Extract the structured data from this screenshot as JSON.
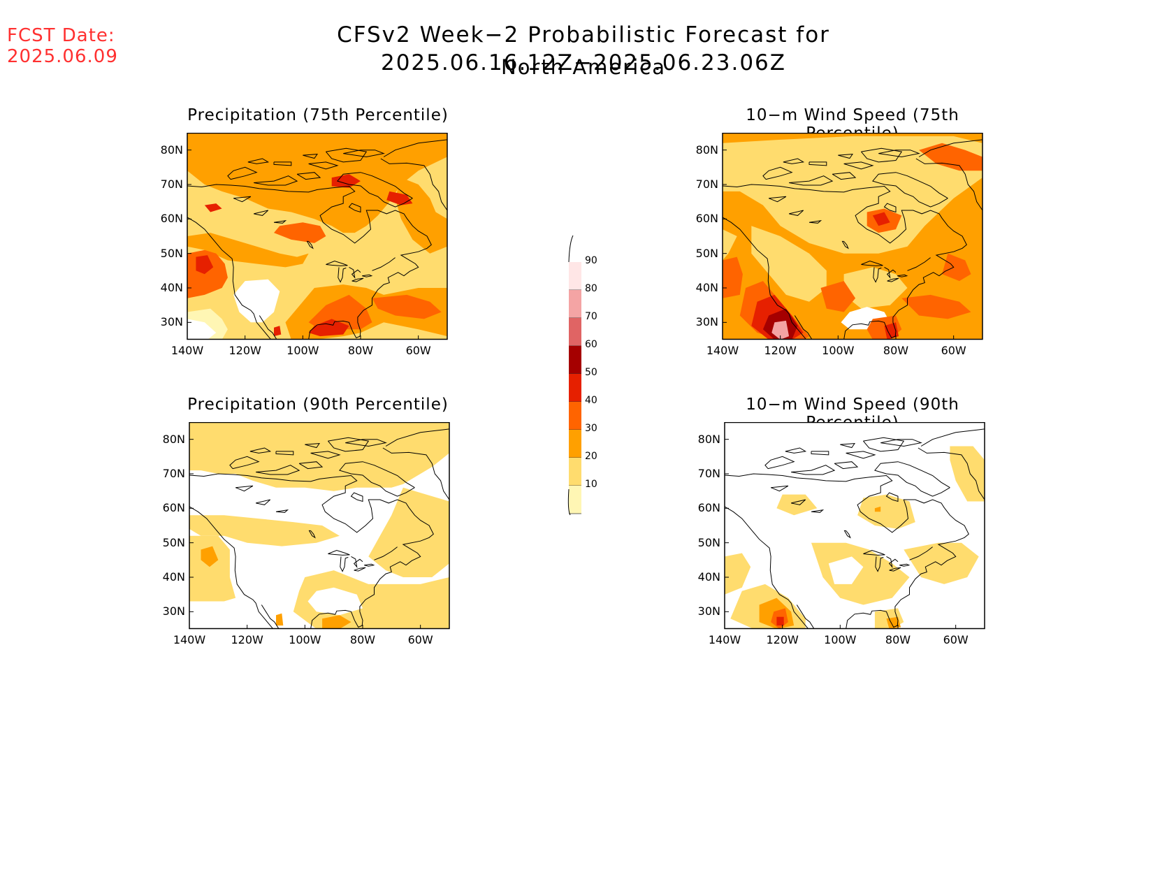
{
  "fcst": {
    "line1": "FCST Date:",
    "line2": "2025.06.09"
  },
  "title": "CFSv2 Week−2 Probabilistic Forecast for 2025.06.16.12Z−2025.06.23.06Z",
  "subtitle": "North America",
  "panels": [
    {
      "title": "Precipitation (75th Percentile)"
    },
    {
      "title": "10−m Wind Speed (75th Percentile)"
    },
    {
      "title": "Precipitation (90th Percentile)"
    },
    {
      "title": "10−m Wind Speed (90th Percentile)"
    }
  ],
  "lat_labels": [
    "80N",
    "70N",
    "60N",
    "50N",
    "40N",
    "30N"
  ],
  "lon_labels": [
    "140W",
    "120W",
    "100W",
    "80W",
    "60W"
  ],
  "colorbar": {
    "labels": [
      "90",
      "80",
      "70",
      "60",
      "50",
      "40",
      "30",
      "20",
      "10"
    ],
    "colors": [
      "#ffe6e6",
      "#f4a4a4",
      "#e06464",
      "#a50000",
      "#e62000",
      "#ff6400",
      "#ffa000",
      "#ffdc6e",
      "#fff6b4"
    ]
  }
}
